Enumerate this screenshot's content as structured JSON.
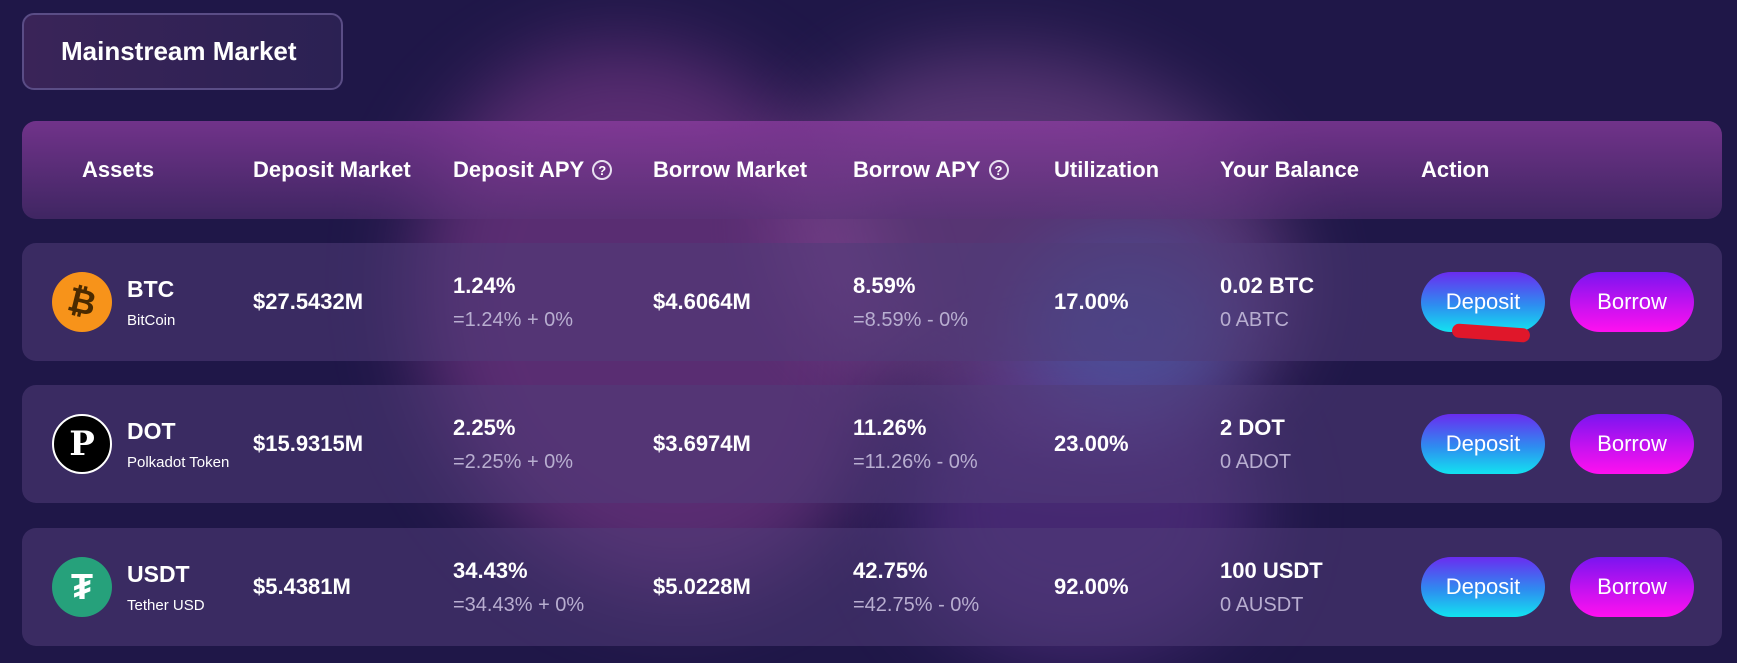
{
  "section_title": "Mainstream Market",
  "columns": {
    "assets": "Assets",
    "deposit_market": "Deposit Market",
    "deposit_apy": "Deposit APY",
    "borrow_market": "Borrow Market",
    "borrow_apy": "Borrow APY",
    "utilization": "Utilization",
    "your_balance": "Your Balance",
    "action": "Action",
    "help_glyph": "?"
  },
  "rows": [
    {
      "symbol": "BTC",
      "name": "BitCoin",
      "icon": "bitcoin-icon",
      "icon_glyph": "₿",
      "icon_color": "#f7931a",
      "deposit_market": "$27.5432M",
      "deposit_apy": "1.24%",
      "deposit_apy_detail": "=1.24% + 0%",
      "borrow_market": "$4.6064M",
      "borrow_apy": "8.59%",
      "borrow_apy_detail": "=8.59% - 0%",
      "utilization": "17.00%",
      "balance": "0.02 BTC",
      "balance_a": "0 ABTC",
      "deposit_label": "Deposit",
      "borrow_label": "Borrow"
    },
    {
      "symbol": "DOT",
      "name": "Polkadot Token",
      "icon": "polkadot-icon",
      "icon_glyph": "P",
      "icon_color": "#000000",
      "deposit_market": "$15.9315M",
      "deposit_apy": "2.25%",
      "deposit_apy_detail": "=2.25% + 0%",
      "borrow_market": "$3.6974M",
      "borrow_apy": "11.26%",
      "borrow_apy_detail": "=11.26% - 0%",
      "utilization": "23.00%",
      "balance": "2 DOT",
      "balance_a": "0 ADOT",
      "deposit_label": "Deposit",
      "borrow_label": "Borrow"
    },
    {
      "symbol": "USDT",
      "name": "Tether USD",
      "icon": "tether-icon",
      "icon_glyph": "₮",
      "icon_color": "#26a17b",
      "deposit_market": "$5.4381M",
      "deposit_apy": "34.43%",
      "deposit_apy_detail": "=34.43% + 0%",
      "borrow_market": "$5.0228M",
      "borrow_apy": "42.75%",
      "borrow_apy_detail": "=42.75% - 0%",
      "utilization": "92.00%",
      "balance": "100 USDT",
      "balance_a": "0 AUSDT",
      "deposit_label": "Deposit",
      "borrow_label": "Borrow"
    }
  ],
  "colors": {
    "background": "#1f1748",
    "deposit_gradient": [
      "#6a2cf0",
      "#12e3f0"
    ],
    "borrow_gradient": [
      "#7a14f0",
      "#ff10f0"
    ],
    "annotation_mark": "#e0172a"
  }
}
